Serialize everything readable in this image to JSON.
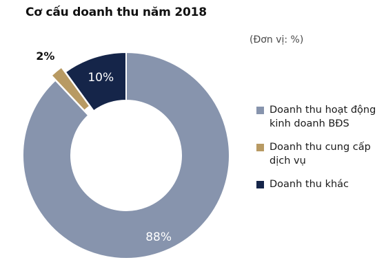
{
  "unit_label": "(Đơn vị: %)",
  "chart_data": {
    "type": "pie",
    "title": "Cơ cấu doanh thu năm 2018",
    "slices": [
      {
        "label": "Doanh thu hoạt động kinh doanh BĐS",
        "value": 88,
        "value_label": "88%",
        "color": "#8794ad"
      },
      {
        "label": "Doanh thu cung cấp dịch vụ",
        "value": 2,
        "value_label": "2%",
        "color": "#b89a63"
      },
      {
        "label": "Doanh thu khác",
        "value": 10,
        "value_label": "10%",
        "color": "#152549"
      }
    ],
    "donut": true,
    "legend_position": "right"
  }
}
